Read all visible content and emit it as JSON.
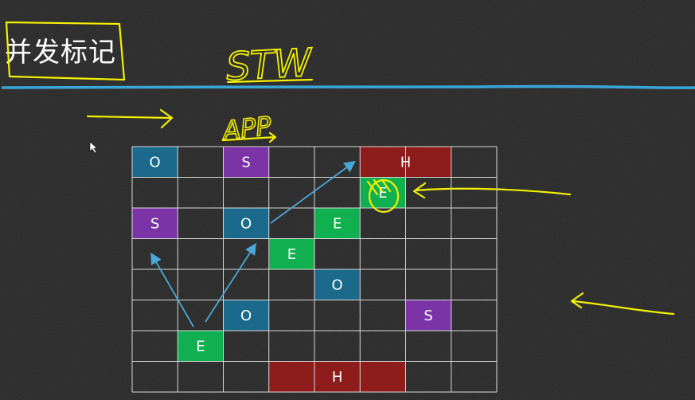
{
  "title": "并发标记",
  "annotations": {
    "top_label": "STW",
    "sub_label": "APP"
  },
  "colors": {
    "O": "#1b6a8c",
    "S": "#7a34a6",
    "E": "#10b050",
    "H": "#8e1c1c",
    "grid": "#d8d8d8",
    "divider": "#3aa6d8",
    "arrow": "#4aa8d8",
    "highlight": "#f3f000"
  },
  "grid": {
    "cols": 8,
    "rows": 8
  },
  "regions": [
    {
      "type": "O",
      "label": "O",
      "col": 0,
      "row": 0,
      "span": 1
    },
    {
      "type": "S",
      "label": "S",
      "col": 2,
      "row": 0,
      "span": 1
    },
    {
      "type": "H",
      "label": "H",
      "col": 5,
      "row": 0,
      "span": 2
    },
    {
      "type": "E",
      "label": "E",
      "col": 5,
      "row": 1,
      "span": 1
    },
    {
      "type": "S",
      "label": "S",
      "col": 0,
      "row": 2,
      "span": 1
    },
    {
      "type": "O",
      "label": "O",
      "col": 2,
      "row": 2,
      "span": 1
    },
    {
      "type": "E",
      "label": "E",
      "col": 4,
      "row": 2,
      "span": 1
    },
    {
      "type": "E",
      "label": "E",
      "col": 3,
      "row": 3,
      "span": 1
    },
    {
      "type": "O",
      "label": "O",
      "col": 4,
      "row": 4,
      "span": 1
    },
    {
      "type": "O",
      "label": "O",
      "col": 2,
      "row": 5,
      "span": 1
    },
    {
      "type": "S",
      "label": "S",
      "col": 6,
      "row": 5,
      "span": 1
    },
    {
      "type": "E",
      "label": "E",
      "col": 1,
      "row": 6,
      "span": 1
    },
    {
      "type": "H",
      "label": "H",
      "col": 3,
      "row": 7,
      "span": 3
    }
  ]
}
